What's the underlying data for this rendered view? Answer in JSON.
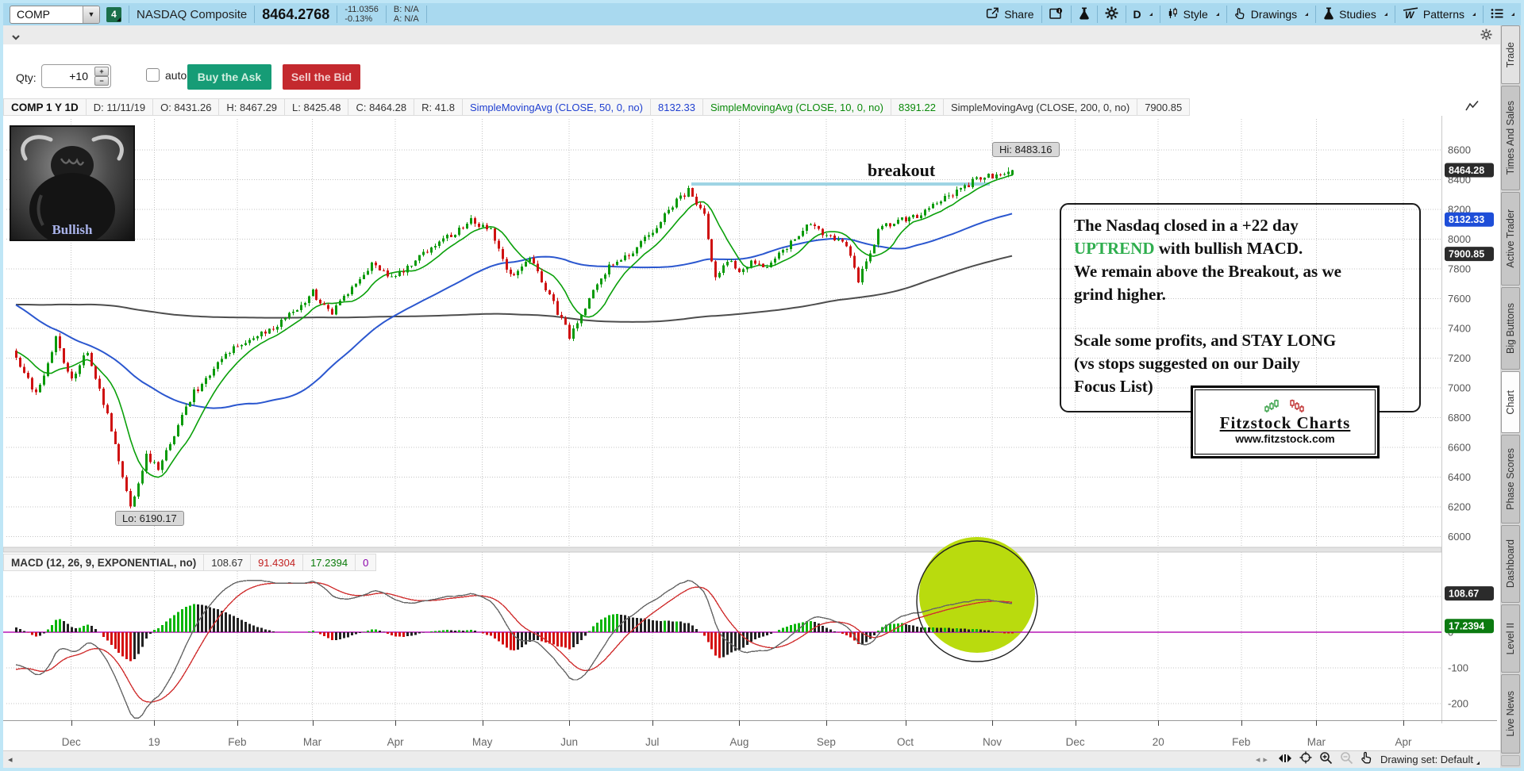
{
  "topbar": {
    "symbol": "COMP",
    "link_badge": "4",
    "name": "NASDAQ Composite",
    "last": "8464.2768",
    "change": "-11.0356",
    "change_pct": "-0.13%",
    "bid": "B: N/A",
    "ask": "A: N/A",
    "share_label": "Share",
    "timeframe": "D",
    "style_label": "Style",
    "drawings_label": "Drawings",
    "studies_label": "Studies",
    "patterns_label": "Patterns"
  },
  "order_bar": {
    "qty_label": "Qty:",
    "qty_value": "+10",
    "auto_send_label": "auto send",
    "buy_label": "Buy the Ask",
    "sell_label": "Sell the Bid"
  },
  "chart_header": {
    "cells": [
      {
        "text": "COMP 1 Y 1D",
        "color": "#111111"
      },
      {
        "text": "D: 11/11/19",
        "color": "#333333"
      },
      {
        "text": "O: 8431.26",
        "color": "#333333"
      },
      {
        "text": "H: 8467.29",
        "color": "#333333"
      },
      {
        "text": "L: 8425.48",
        "color": "#333333"
      },
      {
        "text": "C: 8464.28",
        "color": "#333333"
      },
      {
        "text": "R: 41.8",
        "color": "#333333"
      },
      {
        "text": "SimpleMovingAvg (CLOSE, 50, 0, no)",
        "color": "#1f3fd0"
      },
      {
        "text": "8132.33",
        "color": "#1f3fd0"
      },
      {
        "text": "SimpleMovingAvg (CLOSE, 10, 0, no)",
        "color": "#0a8a0a"
      },
      {
        "text": "8391.22",
        "color": "#0a8a0a"
      },
      {
        "text": "SimpleMovingAvg (CLOSE, 200, 0, no)",
        "color": "#333333"
      },
      {
        "text": "7900.85",
        "color": "#333333"
      }
    ]
  },
  "macd_header": {
    "cells": [
      {
        "text": "MACD (12, 26, 9, EXPONENTIAL, no)",
        "color": "#333333"
      },
      {
        "text": "108.67",
        "color": "#333333"
      },
      {
        "text": "91.4304",
        "color": "#c22222"
      },
      {
        "text": "17.2394",
        "color": "#087a08"
      },
      {
        "text": "0",
        "color": "#8a00aa"
      }
    ]
  },
  "annotations": {
    "breakout": "breakout",
    "hi": "Hi: 8483.16",
    "lo": "Lo: 6190.17",
    "bull_caption": "Bullish",
    "note_lines": [
      [
        {
          "t": "The Nasdaq closed in a +22 day",
          "c": "#111111"
        }
      ],
      [
        {
          "t": "UPTREND",
          "c": "#2fae4e"
        },
        {
          "t": " with bullish MACD.",
          "c": "#111111"
        }
      ],
      [
        {
          "t": "We remain above the Breakout, as we",
          "c": "#111111"
        }
      ],
      [
        {
          "t": "grind higher.",
          "c": "#111111"
        }
      ],
      [
        {
          "t": " ",
          "c": "#111111"
        }
      ],
      [
        {
          "t": "Scale some profits, and STAY LONG",
          "c": "#111111"
        }
      ],
      [
        {
          "t": "(vs stops suggested on our Daily",
          "c": "#111111"
        }
      ],
      [
        {
          "t": "Focus List)",
          "c": "#111111"
        }
      ]
    ],
    "logo_title": "Fitzstock Charts",
    "logo_url": "www.fitzstock.com"
  },
  "price_axis": {
    "labels": [
      "8600",
      "8400",
      "8200",
      "8000",
      "7800",
      "7600",
      "7400",
      "7200",
      "7000",
      "6800",
      "6600",
      "6400",
      "6200",
      "6000"
    ],
    "badges": [
      {
        "text": "8464.28",
        "value": 8464.28,
        "bg": "#2b2b2b"
      },
      {
        "text": "8132.33",
        "value": 8132.33,
        "bg": "#1e4ed8"
      },
      {
        "text": "7900.85",
        "value": 7900.85,
        "bg": "#2b2b2b"
      }
    ]
  },
  "macd_axis": {
    "labels": [
      {
        "text": "100",
        "value": 100
      },
      {
        "text": "0",
        "value": 0
      },
      {
        "text": "-100",
        "value": -100
      },
      {
        "text": "-200",
        "value": -200
      }
    ],
    "badges": [
      {
        "text": "108.67",
        "value": 108.67,
        "bg": "#2b2b2b"
      },
      {
        "text": "17.2394",
        "value": 17.2394,
        "bg": "#0b7a10"
      }
    ]
  },
  "x_axis": {
    "labels": [
      "Dec",
      "19",
      "Feb",
      "Mar",
      "Apr",
      "May",
      "Jun",
      "Jul",
      "Aug",
      "Sep",
      "Oct",
      "Nov",
      "Dec",
      "20",
      "Feb",
      "Mar",
      "Apr"
    ]
  },
  "sidebar": {
    "tabs": [
      {
        "label": "Trade",
        "active": false,
        "light": true
      },
      {
        "label": "Times And Sales",
        "active": false,
        "light": false
      },
      {
        "label": "Active Trader",
        "active": false,
        "light": false
      },
      {
        "label": "Big Buttons",
        "active": false,
        "light": false
      },
      {
        "label": "Chart",
        "active": true,
        "light": false
      },
      {
        "label": "Phase Scores",
        "active": false,
        "light": false
      },
      {
        "label": "Dashboard",
        "active": false,
        "light": false
      },
      {
        "label": "Level II",
        "active": false,
        "light": false
      },
      {
        "label": "Live News",
        "active": false,
        "light": false
      }
    ]
  },
  "statusbar": {
    "drawing_set": "Drawing set: Default"
  },
  "chart_data": {
    "type": "candlestick+macd",
    "symbol": "COMP",
    "range": "1 Y",
    "interval": "1D",
    "visible_high": 8483.16,
    "visible_low": 6190.17,
    "last": {
      "date": "11/11/19",
      "open": 8431.26,
      "high": 8467.29,
      "low": 8425.48,
      "close": 8464.28,
      "range": 41.8
    },
    "sma": [
      {
        "period": 50,
        "value": 8132.33,
        "color": "#2b57cf"
      },
      {
        "period": 10,
        "value": 8391.22,
        "color": "#0aa00a"
      },
      {
        "period": 200,
        "value": 7900.85,
        "color": "#4d4d4d"
      }
    ],
    "macd": {
      "fast": 12,
      "slow": 26,
      "signal": 9,
      "avg_type": "EXPONENTIAL",
      "value": 108.67,
      "signal_value": 91.4304,
      "hist": 17.2394,
      "zero": 0
    },
    "price_ylim": [
      6000,
      8600
    ],
    "macd_ylim": [
      -200,
      100
    ],
    "breakout_level": 8371,
    "close_anchors": [
      [
        -210,
        7050
      ],
      [
        -150,
        7300
      ],
      [
        -100,
        7750
      ],
      [
        -60,
        8100
      ],
      [
        -40,
        7900
      ],
      [
        -15,
        7300
      ],
      [
        -1,
        7230
      ],
      [
        0,
        7200
      ],
      [
        5,
        6950
      ],
      [
        10,
        7330
      ],
      [
        14,
        7050
      ],
      [
        18,
        7250
      ],
      [
        24,
        6720
      ],
      [
        29,
        6192
      ],
      [
        33,
        6550
      ],
      [
        36,
        6460
      ],
      [
        45,
        6970
      ],
      [
        55,
        7280
      ],
      [
        65,
        7400
      ],
      [
        75,
        7640
      ],
      [
        80,
        7500
      ],
      [
        90,
        7840
      ],
      [
        95,
        7730
      ],
      [
        105,
        7940
      ],
      [
        115,
        8120
      ],
      [
        120,
        8050
      ],
      [
        125,
        7750
      ],
      [
        130,
        7880
      ],
      [
        135,
        7620
      ],
      [
        140,
        7350
      ],
      [
        145,
        7600
      ],
      [
        150,
        7820
      ],
      [
        155,
        7900
      ],
      [
        160,
        8020
      ],
      [
        165,
        8200
      ],
      [
        170,
        8330
      ],
      [
        174,
        8150
      ],
      [
        177,
        7730
      ],
      [
        180,
        7870
      ],
      [
        183,
        7770
      ],
      [
        186,
        7850
      ],
      [
        190,
        7820
      ],
      [
        195,
        7950
      ],
      [
        200,
        8100
      ],
      [
        205,
        8020
      ],
      [
        210,
        7950
      ],
      [
        213,
        7720
      ],
      [
        218,
        8050
      ],
      [
        222,
        8120
      ],
      [
        228,
        8160
      ],
      [
        233,
        8250
      ],
      [
        238,
        8320
      ],
      [
        243,
        8400
      ],
      [
        248,
        8430
      ],
      [
        252,
        8464.28
      ]
    ],
    "month_tick_days": [
      14,
      35,
      56,
      75,
      96,
      118,
      140,
      161,
      183,
      205,
      225,
      247,
      268,
      289,
      310,
      329,
      351
    ]
  }
}
